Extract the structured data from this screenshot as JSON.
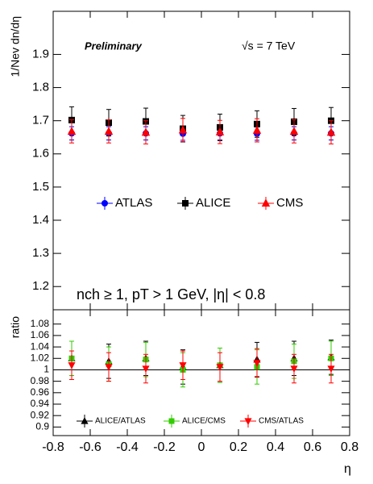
{
  "chart_data": [
    {
      "type": "scatter",
      "annotations": [
        "Preliminary",
        "√s = 7 TeV",
        "nch ≥ 1, pT > 1 GeV, |η| < 0.8"
      ],
      "y_label": "1/Nev dn/dη",
      "xlim": [
        -0.8,
        0.8
      ],
      "xticks": [
        -0.8,
        -0.6,
        -0.4,
        -0.2,
        0,
        0.2,
        0.4,
        0.6,
        0.8
      ],
      "ylim": [
        1.13,
        2.03
      ],
      "yticks": [
        1.2,
        1.3,
        1.4,
        1.5,
        1.6,
        1.7,
        1.8,
        1.9
      ],
      "x": [
        -0.7,
        -0.5,
        -0.3,
        -0.1,
        0.1,
        0.3,
        0.5,
        0.7
      ],
      "series": [
        {
          "name": "ATLAS",
          "color": "#0000ff",
          "marker": "circle",
          "values": [
            1.662,
            1.662,
            1.662,
            1.661,
            1.662,
            1.661,
            1.662,
            1.662
          ],
          "errors": [
            0.02,
            0.02,
            0.02,
            0.02,
            0.02,
            0.02,
            0.02,
            0.02
          ]
        },
        {
          "name": "ALICE",
          "color": "#000000",
          "marker": "square",
          "values": [
            1.702,
            1.694,
            1.698,
            1.676,
            1.68,
            1.69,
            1.697,
            1.7
          ],
          "errors": [
            0.04,
            0.04,
            0.04,
            0.04,
            0.04,
            0.04,
            0.04,
            0.04
          ]
        },
        {
          "name": "CMS",
          "color": "#ff0000",
          "marker": "triangle-up",
          "values": [
            1.668,
            1.668,
            1.665,
            1.672,
            1.666,
            1.671,
            1.668,
            1.665
          ],
          "errors": [
            0.035,
            0.035,
            0.035,
            0.035,
            0.035,
            0.035,
            0.035,
            0.035
          ]
        }
      ]
    },
    {
      "type": "scatter",
      "y_label": "ratio",
      "x_label": "η",
      "reference_line": 1,
      "xlim": [
        -0.8,
        0.8
      ],
      "xticks": [
        -0.8,
        -0.6,
        -0.4,
        -0.2,
        0,
        0.2,
        0.4,
        0.6,
        0.8
      ],
      "ylim": [
        0.885,
        1.105
      ],
      "yticks": [
        0.9,
        0.92,
        0.94,
        0.96,
        0.98,
        1,
        1.02,
        1.04,
        1.06,
        1.08
      ],
      "x": [
        -0.7,
        -0.5,
        -0.3,
        -0.1,
        0.1,
        0.3,
        0.5,
        0.7
      ],
      "series": [
        {
          "name": "ALICE/ATLAS",
          "color": "#000000",
          "marker": "triangle-up",
          "values": [
            1.02,
            1.015,
            1.02,
            1.005,
            1.008,
            1.018,
            1.02,
            1.022
          ],
          "errors": [
            0.03,
            0.03,
            0.03,
            0.03,
            0.03,
            0.03,
            0.03,
            0.03
          ]
        },
        {
          "name": "ALICE/CMS",
          "color": "#33cc00",
          "marker": "square",
          "values": [
            1.02,
            1.01,
            1.018,
            1.0,
            1.008,
            1.005,
            1.015,
            1.02
          ],
          "errors": [
            0.03,
            0.03,
            0.03,
            0.03,
            0.03,
            0.03,
            0.03,
            0.03
          ]
        },
        {
          "name": "CMS/ATLAS",
          "color": "#ff0000",
          "marker": "triangle-down",
          "values": [
            1.008,
            1.005,
            1.002,
            1.008,
            1.005,
            1.012,
            1.002,
            1.002
          ],
          "errors": [
            0.025,
            0.025,
            0.025,
            0.025,
            0.025,
            0.025,
            0.025,
            0.025
          ]
        }
      ]
    }
  ]
}
